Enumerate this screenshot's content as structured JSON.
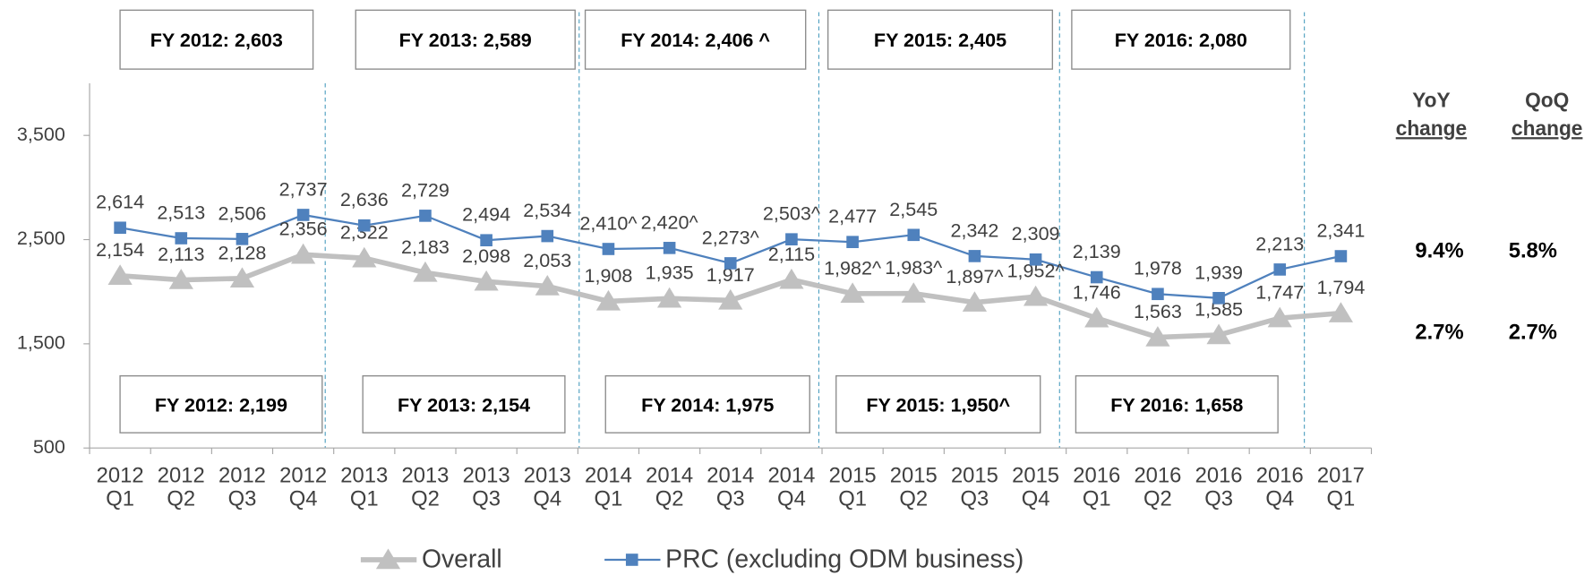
{
  "chart_data": {
    "type": "line",
    "categories": [
      [
        "2012",
        "Q1"
      ],
      [
        "2012",
        "Q2"
      ],
      [
        "2012",
        "Q3"
      ],
      [
        "2012",
        "Q4"
      ],
      [
        "2013",
        "Q1"
      ],
      [
        "2013",
        "Q2"
      ],
      [
        "2013",
        "Q3"
      ],
      [
        "2013",
        "Q4"
      ],
      [
        "2014",
        "Q1"
      ],
      [
        "2014",
        "Q2"
      ],
      [
        "2014",
        "Q3"
      ],
      [
        "2014",
        "Q4"
      ],
      [
        "2015",
        "Q1"
      ],
      [
        "2015",
        "Q2"
      ],
      [
        "2015",
        "Q3"
      ],
      [
        "2015",
        "Q4"
      ],
      [
        "2016",
        "Q1"
      ],
      [
        "2016",
        "Q2"
      ],
      [
        "2016",
        "Q3"
      ],
      [
        "2016",
        "Q4"
      ],
      [
        "2017",
        "Q1"
      ]
    ],
    "series": [
      {
        "name": "Overall",
        "color": "#c0c0c0",
        "marker": "triangle",
        "values": [
          2154,
          2113,
          2128,
          2356,
          2322,
          2183,
          2098,
          2053,
          1908,
          1935,
          1917,
          2115,
          1982,
          1983,
          1897,
          1952,
          1746,
          1563,
          1585,
          1747,
          1794
        ],
        "value_labels": [
          "2,154",
          "2,113",
          "2,128",
          "2,356",
          "2,322",
          "2,183",
          "2,098",
          "2,053",
          "1,908",
          "1,935",
          "1,917",
          "2,115",
          "1,982^",
          "1,983^",
          "1,897^",
          "1,952^",
          "1,746",
          "1,563",
          "1,585",
          "1,747",
          "1,794"
        ]
      },
      {
        "name": "PRC (excluding ODM business)",
        "color": "#4f81bd",
        "marker": "square",
        "values": [
          2614,
          2513,
          2506,
          2737,
          2636,
          2729,
          2494,
          2534,
          2410,
          2420,
          2273,
          2503,
          2477,
          2545,
          2342,
          2309,
          2139,
          1978,
          1939,
          2213,
          2341
        ],
        "value_labels": [
          "2,614",
          "2,513",
          "2,506",
          "2,737",
          "2,636",
          "2,729",
          "2,494",
          "2,534",
          "2,410^",
          "2,420^",
          "2,273^",
          "2,503^",
          "2,477",
          "2,545",
          "2,342",
          "2,309",
          "2,139",
          "1,978",
          "1,939",
          "2,213",
          "2,341"
        ]
      }
    ],
    "ylim": [
      500,
      4000
    ],
    "yticks": [
      500,
      {
        "value": 1500,
        "label": "1,500"
      },
      {
        "value": 2500,
        "label": "2,500"
      },
      {
        "value": 3500,
        "label": "3,500"
      }
    ],
    "legend": "bottom",
    "top_boxes": [
      "FY 2012: 2,603",
      "FY 2013: 2,589",
      "FY 2014: 2,406 ^",
      "FY 2015: 2,405",
      "FY 2016: 2,080"
    ],
    "bottom_boxes": [
      "FY 2012: 2,199",
      "FY 2013: 2,154",
      "FY 2014: 1,975",
      "FY 2015: 1,950^",
      "FY 2016: 1,658"
    ],
    "side_table": {
      "headers": [
        [
          "YoY",
          "change"
        ],
        [
          "QoQ",
          "change"
        ]
      ],
      "rows": [
        [
          "9.4%",
          "5.8%"
        ],
        [
          "2.7%",
          "2.7%"
        ]
      ]
    }
  }
}
